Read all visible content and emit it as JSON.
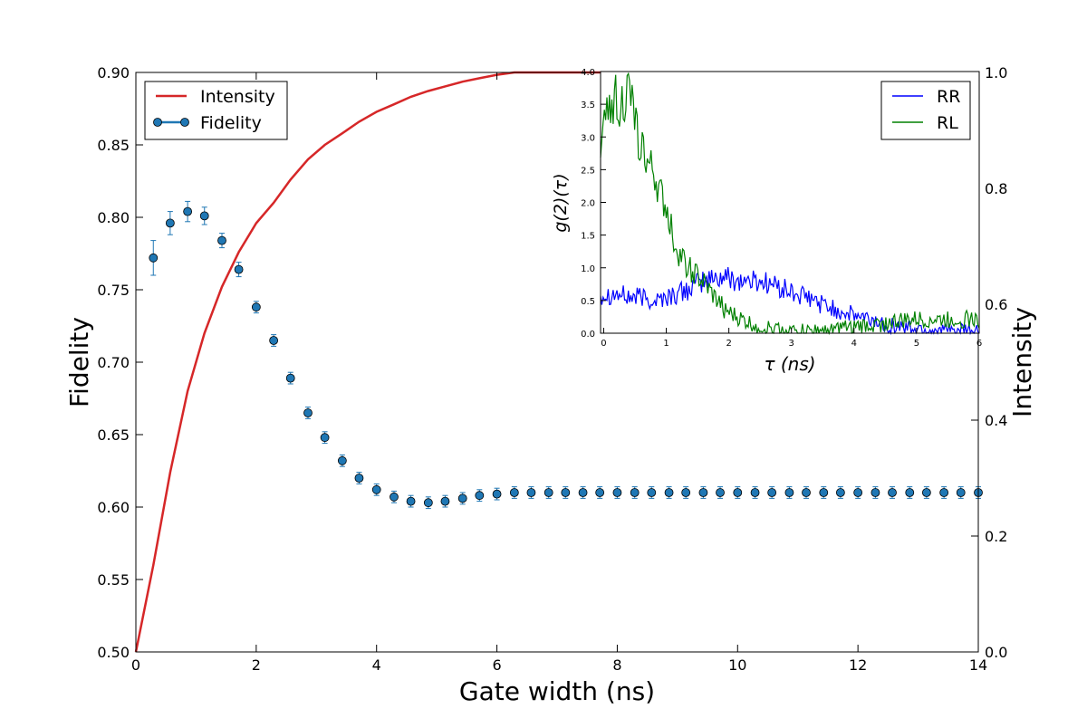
{
  "chart_data": [
    {
      "type": "line",
      "xlabel": "Gate width (ns)",
      "ylabel": "Fidelity",
      "y2label": "Intensity",
      "xlim": [
        0,
        14
      ],
      "ylim": [
        0.5,
        0.9
      ],
      "y2lim": [
        0.0,
        1.0
      ],
      "xticks": [
        "0",
        "2",
        "4",
        "6",
        "8",
        "10",
        "12",
        "14"
      ],
      "yticks": [
        "0.50",
        "0.55",
        "0.60",
        "0.65",
        "0.70",
        "0.75",
        "0.80",
        "0.85",
        "0.90"
      ],
      "y2ticks": [
        "0.0",
        "0.2",
        "0.4",
        "0.6",
        "0.8",
        "1.0"
      ],
      "legend_position": "top-left",
      "series": [
        {
          "name": "Intensity",
          "axis": "right",
          "color": "#d62728",
          "x": [
            0,
            0.29,
            0.57,
            0.86,
            1.14,
            1.43,
            1.71,
            2.0,
            2.29,
            2.57,
            2.86,
            3.14,
            3.43,
            3.71,
            4.0,
            4.29,
            4.57,
            4.86,
            5.14,
            5.43,
            5.71,
            6.0,
            6.29,
            6.57,
            6.86,
            7.14,
            7.43,
            7.71,
            8.0,
            8.29,
            8.57,
            8.86,
            9.14,
            9.43,
            9.71,
            10.0,
            10.29,
            10.57,
            10.86,
            11.14,
            11.43,
            11.71,
            12.0,
            12.29,
            12.57,
            12.86,
            13.14,
            13.43,
            13.71,
            14.0
          ],
          "y": [
            0.0,
            0.15,
            0.31,
            0.45,
            0.55,
            0.63,
            0.69,
            0.74,
            0.775,
            0.815,
            0.85,
            0.875,
            0.895,
            0.915,
            0.932,
            0.945,
            0.958,
            0.968,
            0.976,
            0.984,
            0.99,
            0.996,
            1.0,
            1.0,
            1.0,
            1.0,
            1.0,
            1.0,
            1.0,
            1.0,
            1.0,
            1.0,
            1.0,
            1.0,
            1.0,
            1.0,
            1.0,
            1.0,
            1.0,
            1.0,
            1.0,
            1.0,
            1.0,
            1.0,
            1.0,
            1.0,
            1.0,
            1.0,
            1.0,
            1.0
          ]
        },
        {
          "name": "Fidelity",
          "axis": "left",
          "color": "#1f77b4",
          "marker": "circle",
          "x": [
            0.29,
            0.57,
            0.86,
            1.14,
            1.43,
            1.71,
            2.0,
            2.29,
            2.57,
            2.86,
            3.14,
            3.43,
            3.71,
            4.0,
            4.29,
            4.57,
            4.86,
            5.14,
            5.43,
            5.71,
            6.0,
            6.29,
            6.57,
            6.86,
            7.14,
            7.43,
            7.71,
            8.0,
            8.29,
            8.57,
            8.86,
            9.14,
            9.43,
            9.71,
            10.0,
            10.29,
            10.57,
            10.86,
            11.14,
            11.43,
            11.71,
            12.0,
            12.29,
            12.57,
            12.86,
            13.14,
            13.43,
            13.71,
            14.0
          ],
          "y": [
            0.772,
            0.796,
            0.804,
            0.801,
            0.784,
            0.764,
            0.738,
            0.715,
            0.689,
            0.665,
            0.648,
            0.632,
            0.62,
            0.612,
            0.607,
            0.604,
            0.603,
            0.604,
            0.606,
            0.608,
            0.609,
            0.61,
            0.61,
            0.61,
            0.61,
            0.61,
            0.61,
            0.61,
            0.61,
            0.61,
            0.61,
            0.61,
            0.61,
            0.61,
            0.61,
            0.61,
            0.61,
            0.61,
            0.61,
            0.61,
            0.61,
            0.61,
            0.61,
            0.61,
            0.61,
            0.61,
            0.61,
            0.61,
            0.61
          ],
          "yerr": [
            0.012,
            0.008,
            0.007,
            0.006,
            0.005,
            0.005,
            0.004,
            0.004,
            0.004,
            0.004,
            0.004,
            0.004,
            0.004,
            0.004,
            0.004,
            0.004,
            0.004,
            0.004,
            0.004,
            0.004,
            0.004,
            0.004,
            0.004,
            0.004,
            0.004,
            0.004,
            0.004,
            0.004,
            0.004,
            0.004,
            0.004,
            0.004,
            0.004,
            0.004,
            0.004,
            0.004,
            0.004,
            0.004,
            0.004,
            0.004,
            0.004,
            0.004,
            0.004,
            0.004,
            0.004,
            0.004,
            0.004,
            0.004,
            0.004
          ]
        }
      ]
    },
    {
      "type": "line",
      "inset": true,
      "xlabel": "τ (ns)",
      "ylabel": "g(2)(τ)",
      "xlim": [
        -0.05,
        6.0
      ],
      "ylim": [
        0.0,
        4.0
      ],
      "xticks": [
        "0",
        "1",
        "2",
        "3",
        "4",
        "5",
        "6"
      ],
      "yticks": [
        "0.0",
        "0.5",
        "1.0",
        "1.5",
        "2.0",
        "2.5",
        "3.0",
        "3.5",
        "4.0"
      ],
      "legend_position": "top-right",
      "series": [
        {
          "name": "RR",
          "color": "#0000ff",
          "x": [
            0.0,
            0.2,
            0.4,
            0.6,
            0.8,
            1.0,
            1.2,
            1.4,
            1.6,
            1.8,
            2.0,
            2.2,
            2.4,
            2.6,
            2.8,
            3.0,
            3.2,
            3.4,
            3.6,
            3.8,
            4.0,
            4.2,
            4.4,
            4.6,
            4.8,
            5.0,
            5.2,
            5.4,
            5.6,
            5.8,
            6.0
          ],
          "y": [
            0.6,
            0.6,
            0.55,
            0.55,
            0.5,
            0.55,
            0.6,
            0.7,
            0.8,
            0.85,
            0.85,
            0.8,
            0.8,
            0.78,
            0.7,
            0.62,
            0.55,
            0.48,
            0.4,
            0.33,
            0.27,
            0.22,
            0.16,
            0.12,
            0.09,
            0.07,
            0.05,
            0.04,
            0.03,
            0.03,
            0.02
          ]
        },
        {
          "name": "RL",
          "color": "#008000",
          "x": [
            0.0,
            0.1,
            0.2,
            0.3,
            0.4,
            0.5,
            0.6,
            0.7,
            0.8,
            0.9,
            1.0,
            1.1,
            1.2,
            1.4,
            1.6,
            1.8,
            2.0,
            2.2,
            2.4,
            2.6,
            2.8,
            3.0,
            3.2,
            3.4,
            3.6,
            3.8,
            4.0,
            4.2,
            4.4,
            4.6,
            4.8,
            5.0,
            5.2,
            5.4,
            5.6,
            5.8,
            6.0
          ],
          "y": [
            3.0,
            3.55,
            3.6,
            3.5,
            3.7,
            3.2,
            2.9,
            2.55,
            2.45,
            2.1,
            1.9,
            1.55,
            1.2,
            0.95,
            0.75,
            0.5,
            0.3,
            0.2,
            0.12,
            0.08,
            0.05,
            0.03,
            0.03,
            0.04,
            0.05,
            0.07,
            0.09,
            0.12,
            0.14,
            0.17,
            0.19,
            0.2,
            0.21,
            0.2,
            0.21,
            0.21,
            0.2
          ]
        }
      ]
    }
  ]
}
